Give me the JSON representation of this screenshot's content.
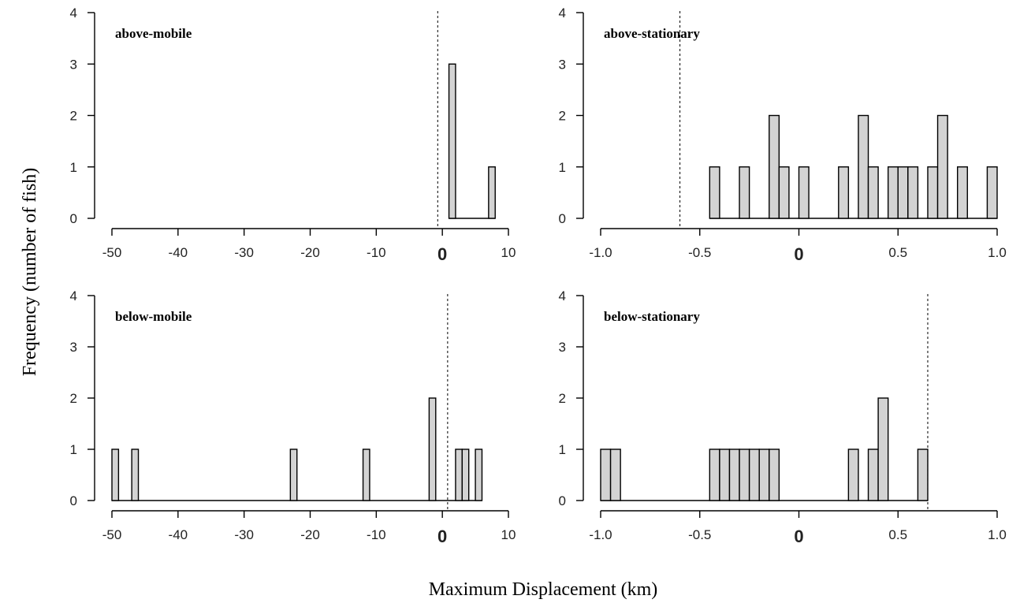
{
  "ylabel": "Frequency (number of fish)",
  "xlabel": "Maximum Displacement (km)",
  "chart_data": [
    {
      "type": "bar",
      "title": "above-mobile",
      "xticks": [
        "-50",
        "-40",
        "-30",
        "-20",
        "-10",
        "0",
        "10"
      ],
      "xlim": [
        -50,
        10
      ],
      "yticks": [
        "0",
        "1",
        "2",
        "3",
        "4"
      ],
      "ylim": [
        0,
        4
      ],
      "bin_width": 1,
      "hist_range": [
        1,
        8
      ],
      "bins": [
        {
          "x0": 1,
          "x1": 2,
          "count": 3
        },
        {
          "x0": 2,
          "x1": 3,
          "count": 0
        },
        {
          "x0": 3,
          "x1": 4,
          "count": 0
        },
        {
          "x0": 4,
          "x1": 5,
          "count": 0
        },
        {
          "x0": 5,
          "x1": 6,
          "count": 0
        },
        {
          "x0": 6,
          "x1": 7,
          "count": 0
        },
        {
          "x0": 7,
          "x1": 8,
          "count": 1
        }
      ],
      "reference_line_x": -0.7
    },
    {
      "type": "bar",
      "title": "above-stationary",
      "xticks": [
        "-1.0",
        "-0.5",
        "0",
        "0.5",
        "1.0"
      ],
      "xlim": [
        -1,
        1
      ],
      "yticks": [
        "0",
        "1",
        "2",
        "3",
        "4"
      ],
      "ylim": [
        0,
        4
      ],
      "bin_width": 0.05,
      "hist_range": [
        -0.45,
        1.0
      ],
      "bins": [
        {
          "x0": -0.45,
          "x1": -0.4,
          "count": 1
        },
        {
          "x0": -0.3,
          "x1": -0.25,
          "count": 1
        },
        {
          "x0": -0.15,
          "x1": -0.1,
          "count": 2
        },
        {
          "x0": -0.1,
          "x1": -0.05,
          "count": 1
        },
        {
          "x0": 0.0,
          "x1": 0.05,
          "count": 1
        },
        {
          "x0": 0.2,
          "x1": 0.25,
          "count": 1
        },
        {
          "x0": 0.3,
          "x1": 0.35,
          "count": 2
        },
        {
          "x0": 0.35,
          "x1": 0.4,
          "count": 1
        },
        {
          "x0": 0.45,
          "x1": 0.5,
          "count": 1
        },
        {
          "x0": 0.5,
          "x1": 0.55,
          "count": 1
        },
        {
          "x0": 0.55,
          "x1": 0.6,
          "count": 1
        },
        {
          "x0": 0.65,
          "x1": 0.7,
          "count": 1
        },
        {
          "x0": 0.7,
          "x1": 0.75,
          "count": 2
        },
        {
          "x0": 0.8,
          "x1": 0.85,
          "count": 1
        },
        {
          "x0": 0.95,
          "x1": 1.0,
          "count": 1
        }
      ],
      "reference_line_x": -0.6
    },
    {
      "type": "bar",
      "title": "below-mobile",
      "xticks": [
        "-50",
        "-40",
        "-30",
        "-20",
        "-10",
        "0",
        "10"
      ],
      "xlim": [
        -50,
        10
      ],
      "yticks": [
        "0",
        "1",
        "2",
        "3",
        "4"
      ],
      "ylim": [
        0,
        4
      ],
      "bin_width": 1,
      "hist_range": [
        -50,
        6
      ],
      "bins": [
        {
          "x0": -50,
          "x1": -49,
          "count": 1
        },
        {
          "x0": -47,
          "x1": -46,
          "count": 1
        },
        {
          "x0": -23,
          "x1": -22,
          "count": 1
        },
        {
          "x0": -12,
          "x1": -11,
          "count": 1
        },
        {
          "x0": -2,
          "x1": -1,
          "count": 2
        },
        {
          "x0": 2,
          "x1": 3,
          "count": 1
        },
        {
          "x0": 3,
          "x1": 4,
          "count": 1
        },
        {
          "x0": 5,
          "x1": 6,
          "count": 1
        }
      ],
      "reference_line_x": 0.8
    },
    {
      "type": "bar",
      "title": "below-stationary",
      "xticks": [
        "-1.0",
        "-0.5",
        "0",
        "0.5",
        "1.0"
      ],
      "xlim": [
        -1,
        1
      ],
      "yticks": [
        "0",
        "1",
        "2",
        "3",
        "4"
      ],
      "ylim": [
        0,
        4
      ],
      "bin_width": 0.05,
      "hist_range": [
        -1.0,
        0.65
      ],
      "bins": [
        {
          "x0": -1.0,
          "x1": -0.95,
          "count": 1
        },
        {
          "x0": -0.95,
          "x1": -0.9,
          "count": 1
        },
        {
          "x0": -0.45,
          "x1": -0.4,
          "count": 1
        },
        {
          "x0": -0.4,
          "x1": -0.35,
          "count": 1
        },
        {
          "x0": -0.35,
          "x1": -0.3,
          "count": 1
        },
        {
          "x0": -0.3,
          "x1": -0.25,
          "count": 1
        },
        {
          "x0": -0.25,
          "x1": -0.2,
          "count": 1
        },
        {
          "x0": -0.2,
          "x1": -0.15,
          "count": 1
        },
        {
          "x0": -0.15,
          "x1": -0.1,
          "count": 1
        },
        {
          "x0": 0.25,
          "x1": 0.3,
          "count": 1
        },
        {
          "x0": 0.35,
          "x1": 0.4,
          "count": 1
        },
        {
          "x0": 0.4,
          "x1": 0.45,
          "count": 2
        },
        {
          "x0": 0.6,
          "x1": 0.65,
          "count": 1
        }
      ],
      "reference_line_x": 0.65
    }
  ]
}
